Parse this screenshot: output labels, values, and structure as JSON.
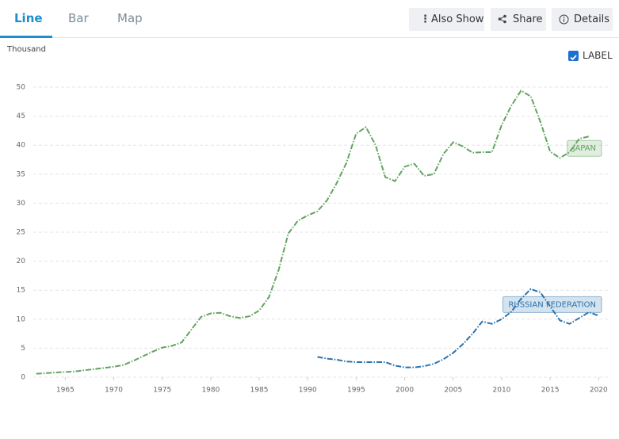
{
  "ui": {
    "tabs": [
      "Line",
      "Bar",
      "Map"
    ],
    "buttons": [
      "Also Show",
      "Share",
      "Details"
    ],
    "checkbox_label": "LABEL"
  },
  "chart_data": {
    "type": "line",
    "y_label": "Thousand",
    "x": [
      1962,
      1963,
      1964,
      1965,
      1966,
      1967,
      1968,
      1969,
      1970,
      1971,
      1972,
      1973,
      1974,
      1975,
      1976,
      1977,
      1978,
      1979,
      1980,
      1981,
      1982,
      1983,
      1984,
      1985,
      1986,
      1987,
      1988,
      1989,
      1990,
      1991,
      1992,
      1993,
      1994,
      1995,
      1996,
      1997,
      1998,
      1999,
      2000,
      2001,
      2002,
      2003,
      2004,
      2005,
      2006,
      2007,
      2008,
      2009,
      2010,
      2011,
      2012,
      2013,
      2014,
      2015,
      2016,
      2017,
      2018,
      2019,
      2020
    ],
    "series": [
      {
        "name": "JAPAN",
        "color": "#62a461",
        "values": [
          0.6,
          0.7,
          0.8,
          0.9,
          1.0,
          1.2,
          1.4,
          1.6,
          1.8,
          2.1,
          2.8,
          3.6,
          4.4,
          5.1,
          5.4,
          6.0,
          8.2,
          10.4,
          11.0,
          11.1,
          10.5,
          10.2,
          10.5,
          11.5,
          13.8,
          18.5,
          24.8,
          27.0,
          27.9,
          28.6,
          30.5,
          33.5,
          37.0,
          42.0,
          43.1,
          40.0,
          34.5,
          33.8,
          36.3,
          36.8,
          34.7,
          35.0,
          38.5,
          40.5,
          39.8,
          38.7,
          38.8,
          38.8,
          43.5,
          46.8,
          49.4,
          48.4,
          44.0,
          38.9,
          37.8,
          38.8,
          41.1,
          41.5,
          null
        ]
      },
      {
        "name": "RUSSIAN FEDERATION",
        "color": "#2b73ad",
        "values": [
          null,
          null,
          null,
          null,
          null,
          null,
          null,
          null,
          null,
          null,
          null,
          null,
          null,
          null,
          null,
          null,
          null,
          null,
          null,
          null,
          null,
          null,
          null,
          null,
          null,
          null,
          null,
          null,
          null,
          3.5,
          3.2,
          3.0,
          2.7,
          2.6,
          2.6,
          2.6,
          2.6,
          2.0,
          1.7,
          1.7,
          1.9,
          2.3,
          3.1,
          4.2,
          5.7,
          7.5,
          9.6,
          9.2,
          10.0,
          11.3,
          13.5,
          15.2,
          14.6,
          12.2,
          9.8,
          9.2,
          10.2,
          11.2,
          10.6
        ]
      }
    ],
    "xlim": [
      1961.7,
      2021.2
    ],
    "xticks": [
      1965,
      1970,
      1975,
      1980,
      1985,
      1990,
      1995,
      2000,
      2005,
      2010,
      2015,
      2020
    ],
    "ylim": [
      0,
      50
    ],
    "yticks": [
      0,
      5,
      10,
      15,
      20,
      25,
      30,
      35,
      40,
      45,
      50
    ],
    "grid": true
  }
}
